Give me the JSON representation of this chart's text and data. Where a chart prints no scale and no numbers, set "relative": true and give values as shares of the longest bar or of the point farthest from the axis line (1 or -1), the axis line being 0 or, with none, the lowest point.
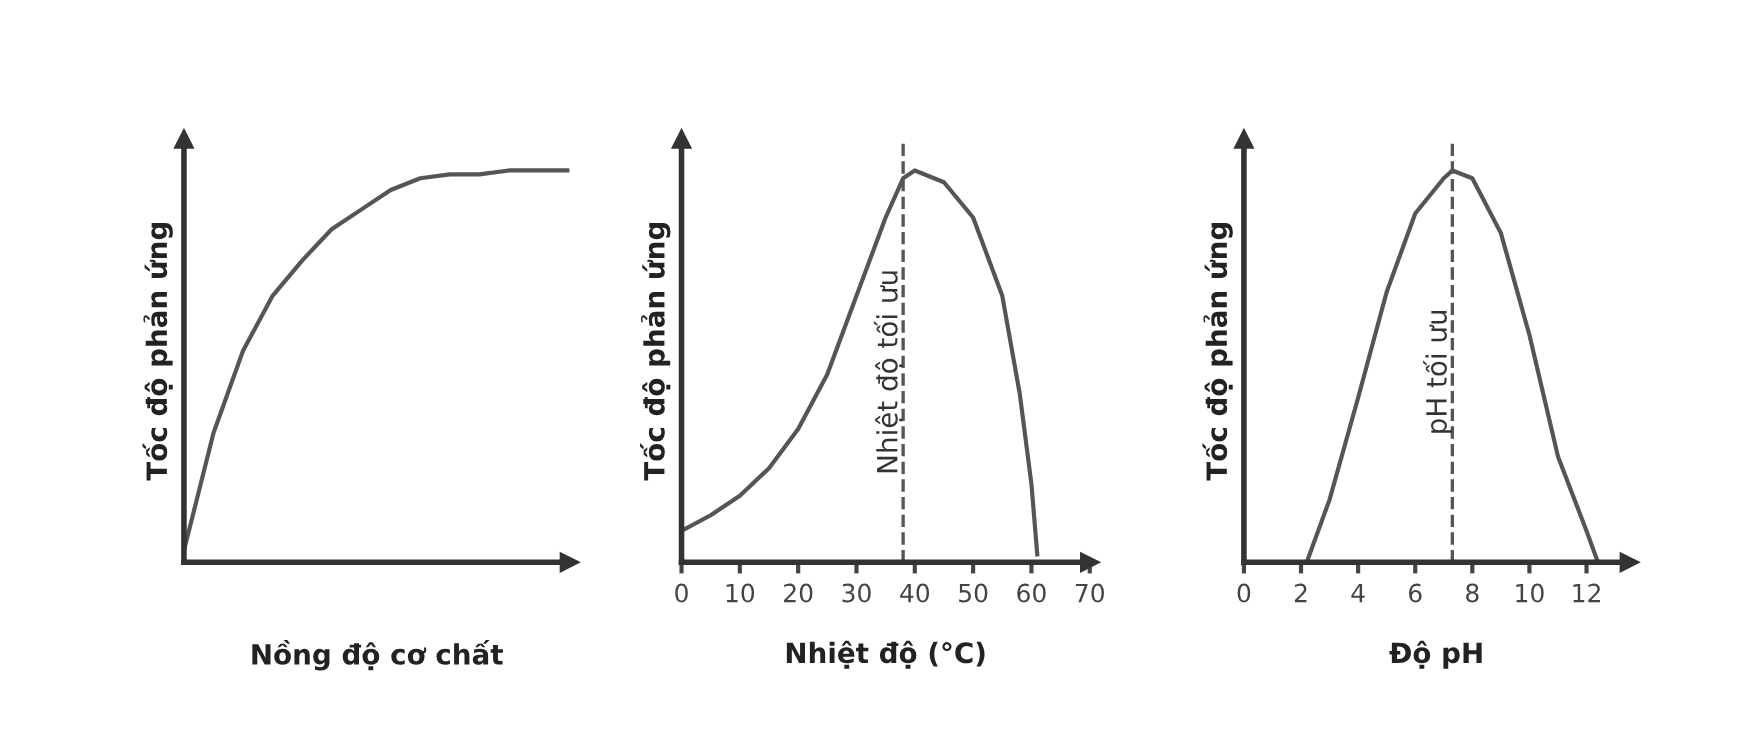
{
  "chart_data": [
    {
      "type": "line",
      "relative": true,
      "xlabel": "Nồng độ cơ chất",
      "ylabel": "Tốc độ phản ứng",
      "categories": [
        null,
        null,
        null,
        null,
        null,
        null,
        null,
        null,
        null,
        null,
        null,
        null,
        null,
        null
      ],
      "series": [
        {
          "color": "#555555",
          "values": [
            0.03,
            0.33,
            0.54,
            0.68,
            0.77,
            0.85,
            0.9,
            0.95,
            0.98,
            0.99,
            0.99,
            1.0,
            1.0,
            1.0
          ]
        }
      ],
      "tick_labels": false
    },
    {
      "type": "line",
      "relative": true,
      "xlabel": "Nhiệt độ (°C)",
      "ylabel": "Tốc độ phản ứng",
      "xlim": [
        0,
        70
      ],
      "xticks": [
        0,
        10,
        20,
        30,
        40,
        50,
        60,
        70
      ],
      "tick_labels": "x",
      "series": [
        {
          "color": "#555555",
          "x": [
            0,
            5,
            10,
            15,
            20,
            25,
            30,
            35,
            38,
            40,
            45,
            50,
            55,
            58,
            60,
            61
          ],
          "values": [
            0.08,
            0.12,
            0.17,
            0.24,
            0.34,
            0.48,
            0.68,
            0.88,
            0.98,
            1.0,
            0.97,
            0.88,
            0.68,
            0.43,
            0.2,
            0.02
          ]
        }
      ],
      "ref_lines": [
        {
          "axis": "x",
          "value": 38,
          "label": "Nhiệt độ tối ưu",
          "line_style": "dashed",
          "color": "#555555"
        }
      ]
    },
    {
      "type": "line",
      "relative": true,
      "xlabel": "Độ pH",
      "ylabel": "Tốc độ phản ứng",
      "xlim": [
        0,
        13.5
      ],
      "xticks": [
        0,
        2,
        4,
        6,
        8,
        10,
        12
      ],
      "tick_labels": "x",
      "series": [
        {
          "color": "#555555",
          "x": [
            2.2,
            3,
            4,
            5,
            6,
            7,
            7.3,
            8,
            9,
            10,
            11,
            12,
            12.4
          ],
          "values": [
            0,
            0.16,
            0.42,
            0.69,
            0.89,
            0.98,
            1.0,
            0.98,
            0.84,
            0.58,
            0.27,
            0.08,
            0
          ]
        }
      ],
      "ref_lines": [
        {
          "axis": "x",
          "value": 7.3,
          "label": "pH tối ưu",
          "line_style": "dashed",
          "color": "#555555"
        }
      ]
    }
  ]
}
